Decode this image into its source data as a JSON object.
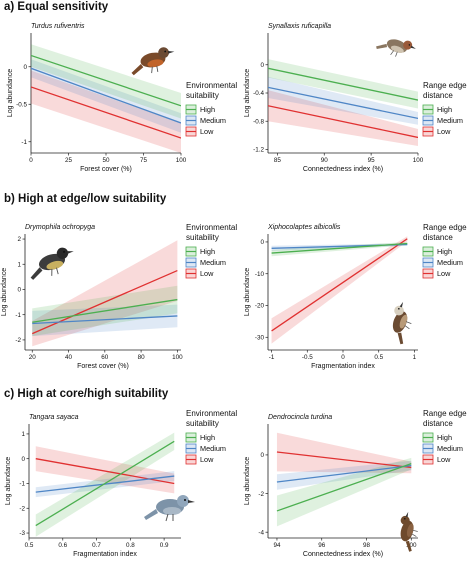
{
  "sections": [
    {
      "title": "a) Equal sensitivity"
    },
    {
      "title": "b) High at edge/low suitability"
    },
    {
      "title": "c) High at core/high suitability"
    }
  ],
  "colors": {
    "High": "#4caf50",
    "Medium": "#4f86c6",
    "Low": "#e03131"
  },
  "chart_data": [
    {
      "type": "line",
      "species": "Turdus rufiventris",
      "xlabel": "Forest cover (%)",
      "ylabel": "Log abundance",
      "xlim": [
        0,
        100
      ],
      "ylim": [
        -1.15,
        0.45
      ],
      "xticks": [
        0,
        25,
        50,
        75,
        100
      ],
      "yticks": [
        0.0,
        -0.5,
        -1.0
      ],
      "legend_title": [
        "Environmental",
        "suitability"
      ],
      "series": [
        {
          "name": "High",
          "x": [
            0,
            100
          ],
          "y": [
            0.15,
            -0.52
          ],
          "ci_width": [
            0.15,
            0.17
          ]
        },
        {
          "name": "Medium",
          "x": [
            0,
            100
          ],
          "y": [
            -0.02,
            -0.75
          ],
          "ci_width": [
            0.12,
            0.13
          ]
        },
        {
          "name": "Low",
          "x": [
            0,
            100
          ],
          "y": [
            -0.27,
            -0.95
          ],
          "ci_width": [
            0.22,
            0.2
          ]
        }
      ]
    },
    {
      "type": "line",
      "species": "Synallaxis ruficapilla",
      "xlabel": "Connectedness index (%)",
      "ylabel": "Log abundance",
      "xlim": [
        84,
        100
      ],
      "ylim": [
        -1.25,
        0.45
      ],
      "xticks": [
        85,
        90,
        95,
        100
      ],
      "yticks": [
        0.0,
        -0.4,
        -0.8,
        -1.2
      ],
      "legend_title": [
        "Range edge",
        "distance"
      ],
      "series": [
        {
          "name": "High",
          "x": [
            84,
            100
          ],
          "y": [
            -0.05,
            -0.5
          ],
          "ci_width": [
            0.13,
            0.12
          ]
        },
        {
          "name": "Medium",
          "x": [
            84,
            100
          ],
          "y": [
            -0.32,
            -0.76
          ],
          "ci_width": [
            0.15,
            0.09
          ]
        },
        {
          "name": "Low",
          "x": [
            84,
            100
          ],
          "y": [
            -0.58,
            -1.03
          ],
          "ci_width": [
            0.22,
            0.12
          ]
        }
      ]
    },
    {
      "type": "line",
      "species": "Drymophila ochropyga",
      "xlabel": "Forest cover (%)",
      "ylabel": "Log abundance",
      "xlim": [
        16,
        102
      ],
      "ylim": [
        -2.4,
        2.2
      ],
      "xticks": [
        20,
        40,
        60,
        80,
        100
      ],
      "yticks": [
        2,
        1,
        0,
        -1,
        -2
      ],
      "legend_title": [
        "Environmental",
        "suitability"
      ],
      "series": [
        {
          "name": "High",
          "x": [
            20,
            100
          ],
          "y": [
            -1.3,
            -0.4
          ],
          "ci_width": [
            0.55,
            0.55
          ]
        },
        {
          "name": "Medium",
          "x": [
            20,
            100
          ],
          "y": [
            -1.35,
            -1.05
          ],
          "ci_width": [
            0.5,
            0.45
          ]
        },
        {
          "name": "Low",
          "x": [
            20,
            100
          ],
          "y": [
            -1.75,
            0.75
          ],
          "ci_width": [
            0.5,
            1.2
          ]
        }
      ]
    },
    {
      "type": "line",
      "species": "Xiphocolaptes albicollis",
      "xlabel": "Fragmentation index",
      "ylabel": "Log abundance",
      "xlim": [
        -1.05,
        1.05
      ],
      "ylim": [
        -34,
        2.5
      ],
      "xticks": [
        -1.0,
        -0.5,
        0.0,
        0.5,
        1.0
      ],
      "yticks": [
        0,
        -10,
        -20,
        -30
      ],
      "legend_title": [
        "Range edge",
        "distance"
      ],
      "series": [
        {
          "name": "High",
          "x": [
            -1.0,
            0.9
          ],
          "y": [
            -3.5,
            -0.5
          ],
          "ci_width": [
            1.0,
            0.5
          ]
        },
        {
          "name": "Medium",
          "x": [
            -1.0,
            0.9
          ],
          "y": [
            -2.0,
            -0.8
          ],
          "ci_width": [
            0.8,
            0.4
          ]
        },
        {
          "name": "Low",
          "x": [
            -1.0,
            0.9
          ],
          "y": [
            -28.0,
            1.0
          ],
          "ci_width": [
            4.0,
            0.8
          ]
        }
      ]
    },
    {
      "type": "line",
      "species": "Tangara sayaca",
      "xlabel": "Fragmentation index",
      "ylabel": "Log abundance",
      "xlim": [
        0.5,
        0.95
      ],
      "ylim": [
        -3.2,
        1.4
      ],
      "xticks": [
        0.5,
        0.6,
        0.7,
        0.8,
        0.9
      ],
      "yticks": [
        1,
        0,
        -1,
        -2,
        -3
      ],
      "legend_title": [
        "Environmental",
        "suitability"
      ],
      "series": [
        {
          "name": "High",
          "x": [
            0.52,
            0.93
          ],
          "y": [
            -2.7,
            0.7
          ],
          "ci_width": [
            0.45,
            0.35
          ]
        },
        {
          "name": "Medium",
          "x": [
            0.52,
            0.93
          ],
          "y": [
            -1.35,
            -0.7
          ],
          "ci_width": [
            0.2,
            0.2
          ]
        },
        {
          "name": "Low",
          "x": [
            0.52,
            0.93
          ],
          "y": [
            0.0,
            -1.0
          ],
          "ci_width": [
            0.5,
            0.4
          ]
        }
      ]
    },
    {
      "type": "line",
      "species": "Dendrocincla turdina",
      "xlabel": "Connectedness index (%)",
      "ylabel": "Log abundance",
      "xlim": [
        93.6,
        100.3
      ],
      "ylim": [
        -4.3,
        1.6
      ],
      "xticks": [
        94,
        96,
        98,
        100
      ],
      "yticks": [
        0,
        -2,
        -4
      ],
      "legend_title": [
        "Range edge",
        "distance"
      ],
      "series": [
        {
          "name": "High",
          "x": [
            94,
            100
          ],
          "y": [
            -2.9,
            -0.45
          ],
          "ci_width": [
            0.8,
            0.3
          ]
        },
        {
          "name": "Medium",
          "x": [
            94,
            100
          ],
          "y": [
            -1.4,
            -0.55
          ],
          "ci_width": [
            0.4,
            0.25
          ]
        },
        {
          "name": "Low",
          "x": [
            94,
            100
          ],
          "y": [
            0.15,
            -0.65
          ],
          "ci_width": [
            1.0,
            0.3
          ]
        }
      ]
    }
  ]
}
